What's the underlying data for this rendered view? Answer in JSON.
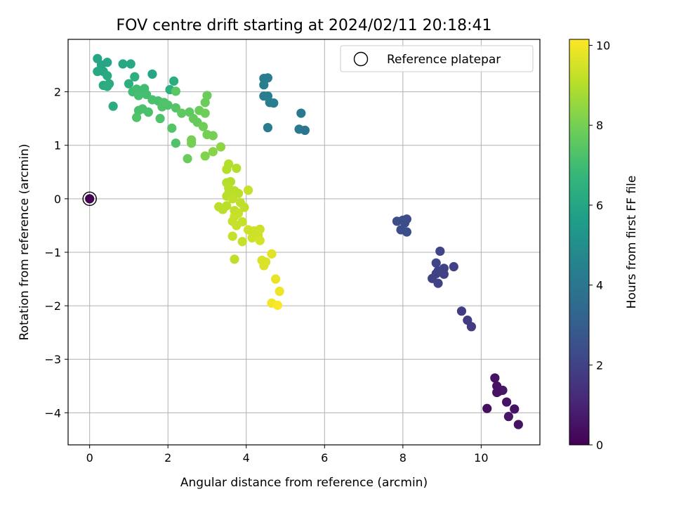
{
  "chart_data": {
    "type": "scatter",
    "title": "FOV centre drift starting at 2024/02/11 20:18:41",
    "xlabel": "Angular distance from reference (arcmin)",
    "ylabel": "Rotation from reference (arcmin)",
    "xlim": [
      -0.55,
      11.5
    ],
    "ylim": [
      -4.6,
      2.98
    ],
    "xticks": [
      0,
      2,
      4,
      6,
      8,
      10
    ],
    "yticks": [
      -4,
      -3,
      -2,
      -1,
      0,
      1,
      2
    ],
    "grid": true,
    "legend": {
      "location": "upper right",
      "entries": [
        "Reference platepar"
      ]
    },
    "colorbar": {
      "label": "Hours from first FF file",
      "range": [
        0,
        10.15
      ],
      "ticks": [
        0,
        2,
        4,
        6,
        8,
        10
      ],
      "colormap": "viridis"
    },
    "reference_point": {
      "x": 0,
      "y": 0
    },
    "points": [
      {
        "x": 10.35,
        "y": -3.35,
        "c": 0.5
      },
      {
        "x": 10.4,
        "y": -3.5,
        "c": 0.5
      },
      {
        "x": 10.45,
        "y": -3.6,
        "c": 0.5
      },
      {
        "x": 10.55,
        "y": -3.58,
        "c": 0.6
      },
      {
        "x": 10.65,
        "y": -3.8,
        "c": 0.5
      },
      {
        "x": 10.85,
        "y": -3.93,
        "c": 0.5
      },
      {
        "x": 10.7,
        "y": -4.07,
        "c": 0.6
      },
      {
        "x": 10.95,
        "y": -4.22,
        "c": 0.5
      },
      {
        "x": 10.15,
        "y": -3.92,
        "c": 0.4
      },
      {
        "x": 10.4,
        "y": -3.62,
        "c": 0.5
      },
      {
        "x": 9.5,
        "y": -2.1,
        "c": 1.8
      },
      {
        "x": 9.65,
        "y": -2.27,
        "c": 1.8
      },
      {
        "x": 9.75,
        "y": -2.39,
        "c": 1.8
      },
      {
        "x": 8.95,
        "y": -0.98,
        "c": 2.1
      },
      {
        "x": 9.3,
        "y": -1.27,
        "c": 2.0
      },
      {
        "x": 8.85,
        "y": -1.2,
        "c": 2.1
      },
      {
        "x": 9.05,
        "y": -1.3,
        "c": 2.0
      },
      {
        "x": 8.9,
        "y": -1.35,
        "c": 2.0
      },
      {
        "x": 9.05,
        "y": -1.41,
        "c": 2.0
      },
      {
        "x": 8.85,
        "y": -1.4,
        "c": 2.0
      },
      {
        "x": 8.75,
        "y": -1.49,
        "c": 2.0
      },
      {
        "x": 8.9,
        "y": -1.58,
        "c": 2.0
      },
      {
        "x": 7.85,
        "y": -0.42,
        "c": 2.4
      },
      {
        "x": 8.0,
        "y": -0.4,
        "c": 2.4
      },
      {
        "x": 8.1,
        "y": -0.38,
        "c": 2.4
      },
      {
        "x": 8.05,
        "y": -0.45,
        "c": 2.4
      },
      {
        "x": 7.95,
        "y": -0.58,
        "c": 2.4
      },
      {
        "x": 8.1,
        "y": -0.62,
        "c": 2.4
      },
      {
        "x": 4.45,
        "y": 2.25,
        "c": 4.3
      },
      {
        "x": 4.55,
        "y": 2.26,
        "c": 4.3
      },
      {
        "x": 4.45,
        "y": 2.13,
        "c": 4.3
      },
      {
        "x": 4.45,
        "y": 1.92,
        "c": 4.3
      },
      {
        "x": 4.55,
        "y": 1.92,
        "c": 4.3
      },
      {
        "x": 4.6,
        "y": 1.8,
        "c": 4.3
      },
      {
        "x": 4.7,
        "y": 1.79,
        "c": 4.3
      },
      {
        "x": 4.55,
        "y": 1.33,
        "c": 4.2
      },
      {
        "x": 5.4,
        "y": 1.6,
        "c": 4.1
      },
      {
        "x": 5.35,
        "y": 1.3,
        "c": 4.1
      },
      {
        "x": 5.5,
        "y": 1.28,
        "c": 4.0
      },
      {
        "x": 0.2,
        "y": 2.62,
        "c": 6.0
      },
      {
        "x": 0.3,
        "y": 2.5,
        "c": 6.0
      },
      {
        "x": 0.45,
        "y": 2.55,
        "c": 6.0
      },
      {
        "x": 0.85,
        "y": 2.52,
        "c": 6.1
      },
      {
        "x": 1.05,
        "y": 2.52,
        "c": 6.1
      },
      {
        "x": 0.2,
        "y": 2.38,
        "c": 6.1
      },
      {
        "x": 0.35,
        "y": 2.38,
        "c": 6.1
      },
      {
        "x": 0.45,
        "y": 2.3,
        "c": 6.2
      },
      {
        "x": 0.5,
        "y": 2.15,
        "c": 6.2
      },
      {
        "x": 0.35,
        "y": 2.12,
        "c": 6.2
      },
      {
        "x": 0.45,
        "y": 2.1,
        "c": 6.3
      },
      {
        "x": 0.6,
        "y": 1.73,
        "c": 6.3
      },
      {
        "x": 1.6,
        "y": 2.33,
        "c": 6.0
      },
      {
        "x": 1.15,
        "y": 2.28,
        "c": 6.4
      },
      {
        "x": 1.0,
        "y": 2.15,
        "c": 6.4
      },
      {
        "x": 2.15,
        "y": 2.2,
        "c": 6.3
      },
      {
        "x": 2.05,
        "y": 2.04,
        "c": 6.4
      },
      {
        "x": 1.1,
        "y": 2.0,
        "c": 7.0
      },
      {
        "x": 1.2,
        "y": 2.05,
        "c": 7.0
      },
      {
        "x": 1.3,
        "y": 2.02,
        "c": 7.0
      },
      {
        "x": 1.4,
        "y": 2.06,
        "c": 7.0
      },
      {
        "x": 1.25,
        "y": 1.93,
        "c": 7.1
      },
      {
        "x": 1.45,
        "y": 1.95,
        "c": 7.1
      },
      {
        "x": 1.6,
        "y": 1.85,
        "c": 7.2
      },
      {
        "x": 1.75,
        "y": 1.83,
        "c": 7.2
      },
      {
        "x": 1.9,
        "y": 1.8,
        "c": 7.3
      },
      {
        "x": 2.0,
        "y": 1.75,
        "c": 7.3
      },
      {
        "x": 1.85,
        "y": 1.72,
        "c": 7.3
      },
      {
        "x": 2.2,
        "y": 1.7,
        "c": 7.4
      },
      {
        "x": 2.1,
        "y": 1.32,
        "c": 7.4
      },
      {
        "x": 2.2,
        "y": 2.01,
        "c": 7.5
      },
      {
        "x": 1.25,
        "y": 1.65,
        "c": 7.2
      },
      {
        "x": 1.35,
        "y": 1.68,
        "c": 7.2
      },
      {
        "x": 1.5,
        "y": 1.62,
        "c": 7.2
      },
      {
        "x": 1.2,
        "y": 1.52,
        "c": 7.3
      },
      {
        "x": 1.8,
        "y": 1.5,
        "c": 7.3
      },
      {
        "x": 2.2,
        "y": 1.04,
        "c": 7.3
      },
      {
        "x": 2.35,
        "y": 1.6,
        "c": 7.6
      },
      {
        "x": 2.55,
        "y": 1.62,
        "c": 7.6
      },
      {
        "x": 2.65,
        "y": 1.5,
        "c": 7.7
      },
      {
        "x": 2.75,
        "y": 1.43,
        "c": 7.7
      },
      {
        "x": 2.8,
        "y": 1.65,
        "c": 7.8
      },
      {
        "x": 2.95,
        "y": 1.8,
        "c": 7.8
      },
      {
        "x": 3.0,
        "y": 1.93,
        "c": 7.8
      },
      {
        "x": 2.95,
        "y": 1.6,
        "c": 7.9
      },
      {
        "x": 2.9,
        "y": 1.35,
        "c": 7.9
      },
      {
        "x": 3.0,
        "y": 1.2,
        "c": 8.0
      },
      {
        "x": 3.15,
        "y": 1.18,
        "c": 8.0
      },
      {
        "x": 2.6,
        "y": 1.1,
        "c": 8.0
      },
      {
        "x": 2.6,
        "y": 1.04,
        "c": 8.0
      },
      {
        "x": 2.5,
        "y": 0.75,
        "c": 7.8
      },
      {
        "x": 2.95,
        "y": 0.8,
        "c": 8.2
      },
      {
        "x": 3.15,
        "y": 0.88,
        "c": 8.3
      },
      {
        "x": 3.35,
        "y": 0.97,
        "c": 8.4
      },
      {
        "x": 3.5,
        "y": 0.55,
        "c": 9.0
      },
      {
        "x": 3.55,
        "y": 0.65,
        "c": 9.0
      },
      {
        "x": 3.75,
        "y": 0.57,
        "c": 9.0
      },
      {
        "x": 3.5,
        "y": 0.3,
        "c": 9.0
      },
      {
        "x": 3.6,
        "y": 0.32,
        "c": 9.0
      },
      {
        "x": 3.55,
        "y": 0.2,
        "c": 9.1
      },
      {
        "x": 3.7,
        "y": 0.15,
        "c": 9.1
      },
      {
        "x": 3.55,
        "y": 0.1,
        "c": 9.1
      },
      {
        "x": 3.5,
        "y": 0.05,
        "c": 9.1
      },
      {
        "x": 3.8,
        "y": 0.1,
        "c": 9.1
      },
      {
        "x": 4.05,
        "y": 0.16,
        "c": 9.3
      },
      {
        "x": 3.65,
        "y": 0.0,
        "c": 9.2
      },
      {
        "x": 3.3,
        "y": -0.15,
        "c": 9.1
      },
      {
        "x": 3.4,
        "y": -0.2,
        "c": 9.1
      },
      {
        "x": 3.5,
        "y": -0.13,
        "c": 9.1
      },
      {
        "x": 3.85,
        "y": -0.07,
        "c": 9.2
      },
      {
        "x": 3.95,
        "y": -0.16,
        "c": 9.2
      },
      {
        "x": 3.7,
        "y": -0.22,
        "c": 9.2
      },
      {
        "x": 3.8,
        "y": -0.27,
        "c": 9.3
      },
      {
        "x": 3.7,
        "y": -0.33,
        "c": 9.3
      },
      {
        "x": 3.65,
        "y": -0.42,
        "c": 9.3
      },
      {
        "x": 3.9,
        "y": -0.43,
        "c": 9.3
      },
      {
        "x": 3.75,
        "y": -0.5,
        "c": 9.3
      },
      {
        "x": 3.65,
        "y": -0.7,
        "c": 9.3
      },
      {
        "x": 3.9,
        "y": -0.8,
        "c": 9.3
      },
      {
        "x": 3.7,
        "y": -1.13,
        "c": 9.2
      },
      {
        "x": 4.05,
        "y": -0.58,
        "c": 9.4
      },
      {
        "x": 4.2,
        "y": -0.6,
        "c": 9.4
      },
      {
        "x": 4.35,
        "y": -0.57,
        "c": 9.4
      },
      {
        "x": 4.3,
        "y": -0.68,
        "c": 9.4
      },
      {
        "x": 4.15,
        "y": -0.73,
        "c": 9.4
      },
      {
        "x": 4.35,
        "y": -0.78,
        "c": 9.5
      },
      {
        "x": 4.4,
        "y": -1.15,
        "c": 9.6
      },
      {
        "x": 4.5,
        "y": -1.18,
        "c": 9.6
      },
      {
        "x": 4.45,
        "y": -1.25,
        "c": 9.6
      },
      {
        "x": 4.65,
        "y": -1.03,
        "c": 9.7
      },
      {
        "x": 4.75,
        "y": -1.5,
        "c": 9.8
      },
      {
        "x": 4.85,
        "y": -1.73,
        "c": 9.9
      },
      {
        "x": 4.65,
        "y": -1.95,
        "c": 10.0
      },
      {
        "x": 4.8,
        "y": -1.99,
        "c": 10.1
      }
    ]
  }
}
